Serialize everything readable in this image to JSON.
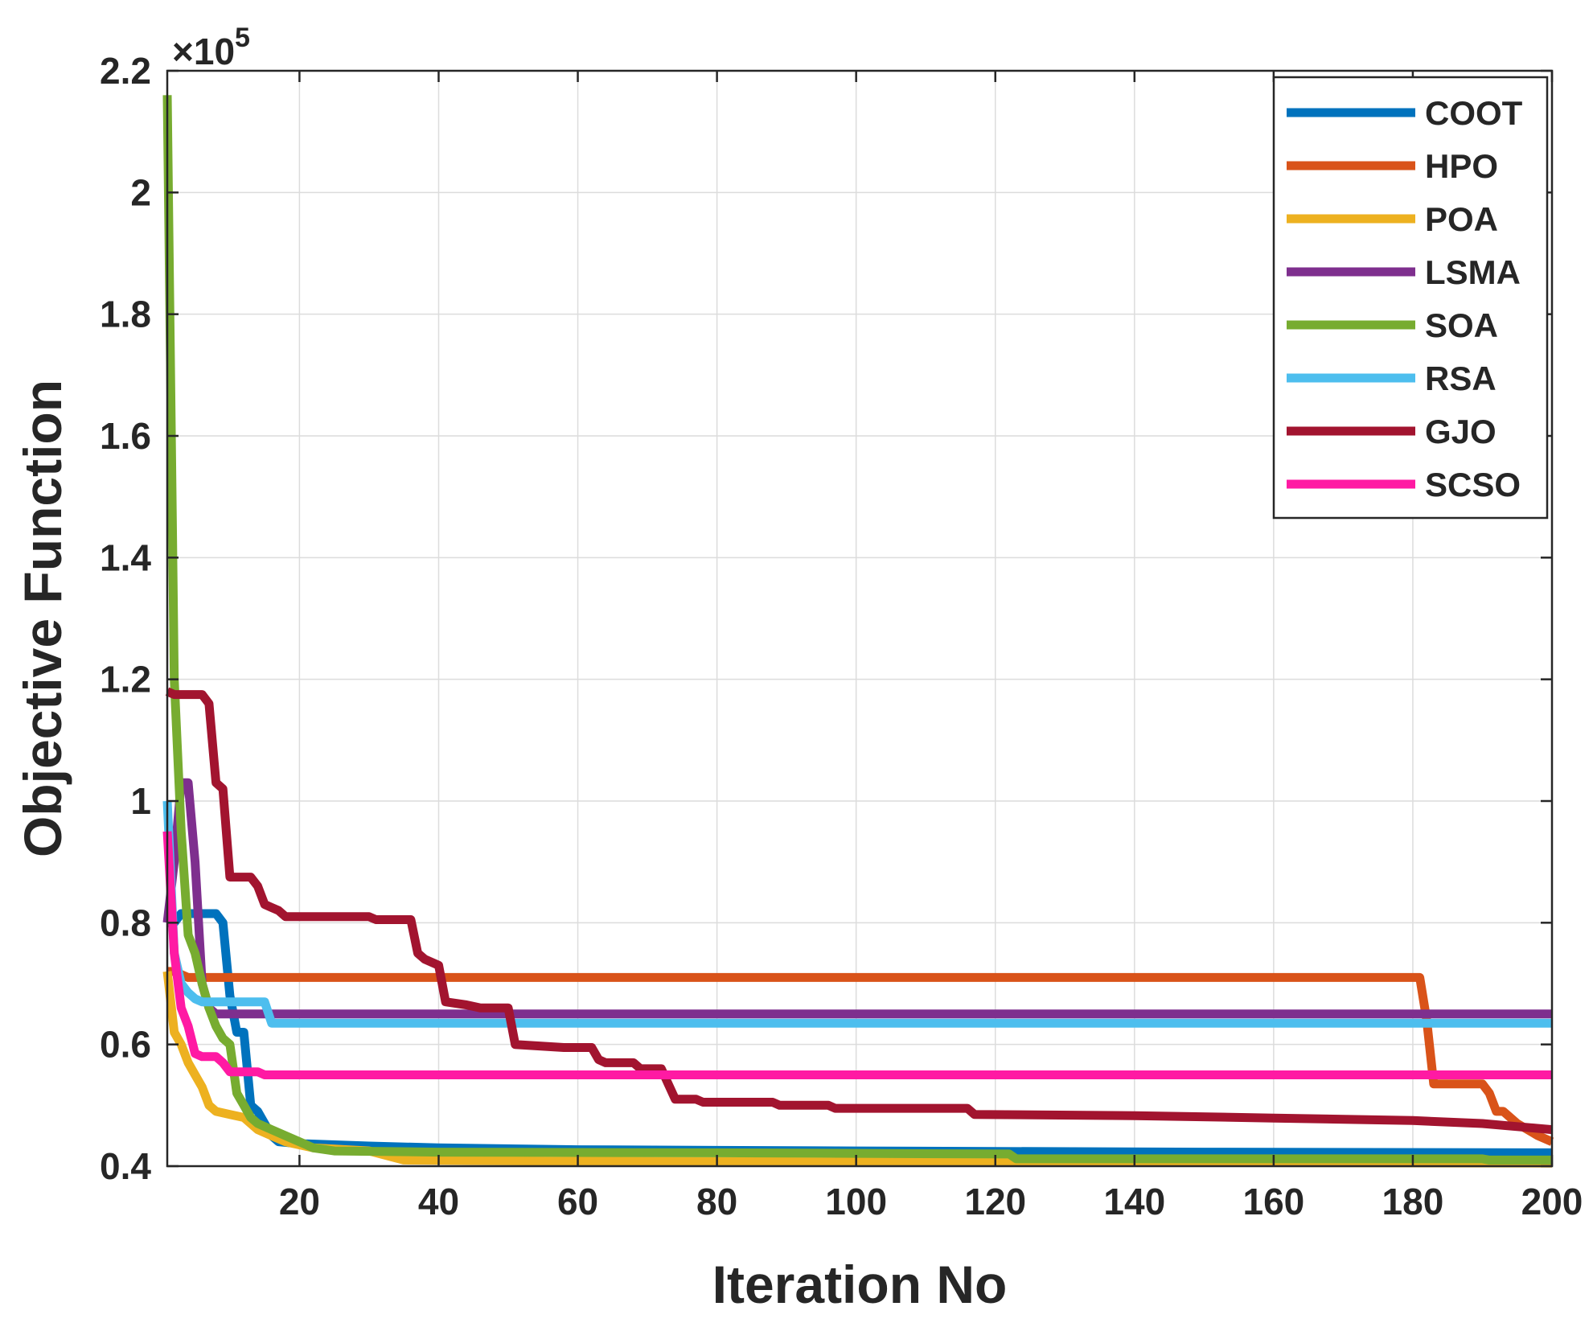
{
  "chart_data": {
    "type": "line",
    "title": "",
    "xlabel": "Iteration No",
    "ylabel": "Objective Function",
    "y_multiplier_label": "×10",
    "y_multiplier_exponent": "5",
    "xlim": [
      1,
      200
    ],
    "ylim": [
      0.4,
      2.2
    ],
    "xticks": [
      20,
      40,
      60,
      80,
      100,
      120,
      140,
      160,
      180,
      200
    ],
    "xtick_labels": [
      "20",
      "40",
      "60",
      "80",
      "100",
      "120",
      "140",
      "160",
      "180",
      "200"
    ],
    "yticks": [
      0.4,
      0.6,
      0.8,
      1.0,
      1.2,
      1.4,
      1.6,
      1.8,
      2.0,
      2.2
    ],
    "ytick_labels": [
      "0.4",
      "0.6",
      "0.8",
      "1",
      "1.2",
      "1.4",
      "1.6",
      "1.8",
      "2",
      "2.2"
    ],
    "grid": true,
    "legend_position": "top-right",
    "series": [
      {
        "name": "COOT",
        "color": "#0072BD",
        "points": [
          [
            1,
            0.8
          ],
          [
            2,
            0.8
          ],
          [
            3,
            0.815
          ],
          [
            4,
            0.815
          ],
          [
            8,
            0.815
          ],
          [
            9,
            0.8
          ],
          [
            10,
            0.68
          ],
          [
            11,
            0.62
          ],
          [
            12,
            0.62
          ],
          [
            13,
            0.5
          ],
          [
            14,
            0.49
          ],
          [
            15,
            0.47
          ],
          [
            16,
            0.45
          ],
          [
            17,
            0.44
          ],
          [
            20,
            0.437
          ],
          [
            30,
            0.433
          ],
          [
            40,
            0.43
          ],
          [
            60,
            0.427
          ],
          [
            100,
            0.425
          ],
          [
            150,
            0.423
          ],
          [
            200,
            0.422
          ]
        ]
      },
      {
        "name": "HPO",
        "color": "#D95319",
        "points": [
          [
            1,
            0.72
          ],
          [
            2,
            0.72
          ],
          [
            3,
            0.715
          ],
          [
            4,
            0.71
          ],
          [
            5,
            0.71
          ],
          [
            181,
            0.71
          ],
          [
            182,
            0.64
          ],
          [
            183,
            0.535
          ],
          [
            190,
            0.535
          ],
          [
            191,
            0.52
          ],
          [
            192,
            0.49
          ],
          [
            193,
            0.49
          ],
          [
            195,
            0.47
          ],
          [
            198,
            0.45
          ],
          [
            200,
            0.44
          ]
        ]
      },
      {
        "name": "POA",
        "color": "#EDB120",
        "points": [
          [
            1,
            0.72
          ],
          [
            2,
            0.62
          ],
          [
            3,
            0.6
          ],
          [
            4,
            0.57
          ],
          [
            5,
            0.55
          ],
          [
            6,
            0.53
          ],
          [
            7,
            0.5
          ],
          [
            8,
            0.49
          ],
          [
            10,
            0.485
          ],
          [
            12,
            0.48
          ],
          [
            14,
            0.46
          ],
          [
            16,
            0.45
          ],
          [
            18,
            0.44
          ],
          [
            22,
            0.43
          ],
          [
            30,
            0.425
          ],
          [
            35,
            0.41
          ],
          [
            60,
            0.408
          ],
          [
            100,
            0.407
          ],
          [
            150,
            0.406
          ],
          [
            200,
            0.405
          ]
        ]
      },
      {
        "name": "LSMA",
        "color": "#7E2F8E",
        "points": [
          [
            1,
            0.8
          ],
          [
            2,
            0.9
          ],
          [
            3,
            1.03
          ],
          [
            4,
            1.03
          ],
          [
            5,
            0.9
          ],
          [
            6,
            0.7
          ],
          [
            7,
            0.66
          ],
          [
            8,
            0.65
          ],
          [
            200,
            0.65
          ]
        ]
      },
      {
        "name": "SOA",
        "color": "#77AC30",
        "points": [
          [
            1,
            2.16
          ],
          [
            2,
            1.2
          ],
          [
            3,
            0.95
          ],
          [
            4,
            0.78
          ],
          [
            5,
            0.75
          ],
          [
            6,
            0.7
          ],
          [
            7,
            0.66
          ],
          [
            8,
            0.63
          ],
          [
            9,
            0.61
          ],
          [
            10,
            0.6
          ],
          [
            11,
            0.52
          ],
          [
            12,
            0.5
          ],
          [
            13,
            0.48
          ],
          [
            14,
            0.47
          ],
          [
            16,
            0.46
          ],
          [
            18,
            0.45
          ],
          [
            20,
            0.44
          ],
          [
            22,
            0.43
          ],
          [
            25,
            0.425
          ],
          [
            40,
            0.423
          ],
          [
            80,
            0.422
          ],
          [
            122,
            0.42
          ],
          [
            123,
            0.412
          ],
          [
            150,
            0.412
          ],
          [
            190,
            0.412
          ],
          [
            191,
            0.41
          ],
          [
            200,
            0.41
          ]
        ]
      },
      {
        "name": "RSA",
        "color": "#4DBEEE",
        "points": [
          [
            1,
            1.0
          ],
          [
            2,
            0.75
          ],
          [
            3,
            0.7
          ],
          [
            4,
            0.685
          ],
          [
            5,
            0.675
          ],
          [
            6,
            0.67
          ],
          [
            15,
            0.67
          ],
          [
            16,
            0.635
          ],
          [
            200,
            0.635
          ]
        ]
      },
      {
        "name": "GJO",
        "color": "#A2142F",
        "points": [
          [
            1,
            1.18
          ],
          [
            2,
            1.175
          ],
          [
            6,
            1.175
          ],
          [
            7,
            1.16
          ],
          [
            8,
            1.03
          ],
          [
            9,
            1.02
          ],
          [
            10,
            0.875
          ],
          [
            13,
            0.875
          ],
          [
            14,
            0.86
          ],
          [
            15,
            0.83
          ],
          [
            16,
            0.825
          ],
          [
            17,
            0.82
          ],
          [
            18,
            0.81
          ],
          [
            30,
            0.81
          ],
          [
            31,
            0.805
          ],
          [
            36,
            0.805
          ],
          [
            37,
            0.75
          ],
          [
            38,
            0.74
          ],
          [
            40,
            0.73
          ],
          [
            41,
            0.67
          ],
          [
            44,
            0.665
          ],
          [
            46,
            0.66
          ],
          [
            50,
            0.66
          ],
          [
            51,
            0.6
          ],
          [
            58,
            0.595
          ],
          [
            62,
            0.595
          ],
          [
            63,
            0.575
          ],
          [
            64,
            0.57
          ],
          [
            68,
            0.57
          ],
          [
            69,
            0.56
          ],
          [
            72,
            0.56
          ],
          [
            73,
            0.535
          ],
          [
            74,
            0.51
          ],
          [
            77,
            0.51
          ],
          [
            78,
            0.505
          ],
          [
            88,
            0.505
          ],
          [
            89,
            0.5
          ],
          [
            96,
            0.5
          ],
          [
            97,
            0.495
          ],
          [
            116,
            0.495
          ],
          [
            117,
            0.485
          ],
          [
            140,
            0.483
          ],
          [
            160,
            0.479
          ],
          [
            180,
            0.475
          ],
          [
            190,
            0.47
          ],
          [
            195,
            0.465
          ],
          [
            200,
            0.46
          ]
        ]
      },
      {
        "name": "SCSO",
        "color": "#FF1AA3",
        "points": [
          [
            1,
            0.95
          ],
          [
            2,
            0.75
          ],
          [
            3,
            0.66
          ],
          [
            4,
            0.63
          ],
          [
            5,
            0.585
          ],
          [
            6,
            0.58
          ],
          [
            8,
            0.58
          ],
          [
            9,
            0.57
          ],
          [
            10,
            0.555
          ],
          [
            14,
            0.555
          ],
          [
            15,
            0.55
          ],
          [
            200,
            0.55
          ]
        ]
      }
    ]
  }
}
